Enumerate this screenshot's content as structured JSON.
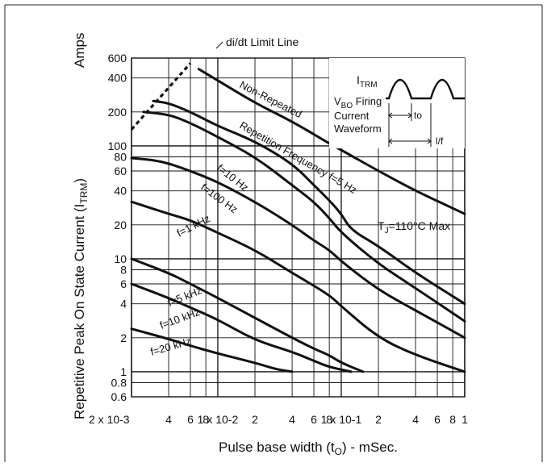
{
  "chart_data": {
    "type": "line",
    "xscale": "log",
    "yscale": "log",
    "xlim": [
      0.002,
      1
    ],
    "ylim": [
      0.6,
      600
    ],
    "grid": true,
    "xlabel": "Pulse base width (tO) - mSec.",
    "ylabel": "Repetitive Peak On State Current (ITRM) Amps",
    "xlabel_parts": {
      "main": "Pulse base width (t",
      "sub": "O",
      "tail": ") - mSec."
    },
    "ylabel_parts": {
      "main": "Repetitive Peak On State Current (I",
      "sub": "TRM",
      "tail": ")"
    },
    "ylabel_unit": "Amps",
    "x_ticks": [
      {
        "v": 0.002,
        "label": "2 x 10-3"
      },
      {
        "v": 0.004,
        "label": "4"
      },
      {
        "v": 0.006,
        "label": "6"
      },
      {
        "v": 0.008,
        "label": "8"
      },
      {
        "v": 0.01,
        "label": "1 x 10-2"
      },
      {
        "v": 0.02,
        "label": "2"
      },
      {
        "v": 0.04,
        "label": "4"
      },
      {
        "v": 0.06,
        "label": "6"
      },
      {
        "v": 0.08,
        "label": "8"
      },
      {
        "v": 0.1,
        "label": "1 x 10-1"
      },
      {
        "v": 0.2,
        "label": "2"
      },
      {
        "v": 0.4,
        "label": "4"
      },
      {
        "v": 0.6,
        "label": "6"
      },
      {
        "v": 0.8,
        "label": "8"
      },
      {
        "v": 1,
        "label": "1"
      }
    ],
    "y_ticks": [
      {
        "v": 600,
        "label": "600"
      },
      {
        "v": 400,
        "label": "400"
      },
      {
        "v": 200,
        "label": "200"
      },
      {
        "v": 100,
        "label": "100"
      },
      {
        "v": 80,
        "label": "80"
      },
      {
        "v": 60,
        "label": "60"
      },
      {
        "v": 40,
        "label": "40"
      },
      {
        "v": 20,
        "label": "20"
      },
      {
        "v": 10,
        "label": "10"
      },
      {
        "v": 8,
        "label": "8"
      },
      {
        "v": 6,
        "label": "6"
      },
      {
        "v": 4,
        "label": "4"
      },
      {
        "v": 2,
        "label": "2"
      },
      {
        "v": 1,
        "label": "1"
      },
      {
        "v": 0.8,
        "label": "0.8"
      },
      {
        "v": 0.6,
        "label": "0.6"
      }
    ],
    "series": [
      {
        "name": "Non-Repeated",
        "points": [
          [
            0.007,
            480
          ],
          [
            0.01,
            380
          ],
          [
            0.02,
            240
          ],
          [
            0.04,
            165
          ],
          [
            0.08,
            105
          ],
          [
            0.1,
            92
          ],
          [
            0.2,
            60
          ],
          [
            0.4,
            40
          ],
          [
            1,
            25
          ]
        ]
      },
      {
        "name": "Repetition Frequency f=5 Hz",
        "points": [
          [
            0.003,
            250
          ],
          [
            0.004,
            240
          ],
          [
            0.006,
            200
          ],
          [
            0.01,
            150
          ],
          [
            0.02,
            110
          ],
          [
            0.04,
            70
          ],
          [
            0.06,
            45
          ],
          [
            0.08,
            33
          ],
          [
            0.1,
            25
          ],
          [
            0.12,
            18
          ],
          [
            0.2,
            13
          ],
          [
            0.4,
            7.5
          ],
          [
            1,
            4
          ]
        ]
      },
      {
        "name": "f=10 Hz",
        "points": [
          [
            0.0025,
            200
          ],
          [
            0.004,
            190
          ],
          [
            0.006,
            160
          ],
          [
            0.01,
            120
          ],
          [
            0.02,
            80
          ],
          [
            0.04,
            45
          ],
          [
            0.06,
            32
          ],
          [
            0.08,
            23
          ],
          [
            0.1,
            17
          ],
          [
            0.2,
            9
          ],
          [
            0.4,
            5.5
          ],
          [
            1,
            2.8
          ]
        ]
      },
      {
        "name": "f=100 Hz",
        "points": [
          [
            0.002,
            78
          ],
          [
            0.003,
            75
          ],
          [
            0.004,
            70
          ],
          [
            0.006,
            60
          ],
          [
            0.01,
            48
          ],
          [
            0.02,
            32
          ],
          [
            0.04,
            20
          ],
          [
            0.06,
            14.5
          ],
          [
            0.08,
            12
          ],
          [
            0.1,
            9.5
          ],
          [
            0.2,
            5.3
          ],
          [
            0.4,
            3.5
          ],
          [
            1,
            2
          ]
        ]
      },
      {
        "name": "f=1 kHz",
        "points": [
          [
            0.002,
            32
          ],
          [
            0.004,
            25
          ],
          [
            0.006,
            22
          ],
          [
            0.01,
            17
          ],
          [
            0.02,
            12
          ],
          [
            0.04,
            7.5
          ],
          [
            0.08,
            4.8
          ],
          [
            0.1,
            3.8
          ],
          [
            0.2,
            2
          ],
          [
            0.4,
            1.4
          ],
          [
            1,
            1
          ]
        ]
      },
      {
        "name": "f=5 kHz",
        "points": [
          [
            0.002,
            10
          ],
          [
            0.004,
            7.5
          ],
          [
            0.006,
            6
          ],
          [
            0.01,
            4.5
          ],
          [
            0.02,
            3
          ],
          [
            0.04,
            2
          ],
          [
            0.06,
            1.6
          ],
          [
            0.08,
            1.4
          ],
          [
            0.1,
            1.2
          ],
          [
            0.15,
            1
          ]
        ]
      },
      {
        "name": "f=10 kHz",
        "points": [
          [
            0.002,
            6
          ],
          [
            0.004,
            4.5
          ],
          [
            0.006,
            3.7
          ],
          [
            0.01,
            2.9
          ],
          [
            0.02,
            1.9
          ],
          [
            0.04,
            1.5
          ],
          [
            0.06,
            1.25
          ],
          [
            0.08,
            1.1
          ],
          [
            0.12,
            1
          ]
        ]
      },
      {
        "name": "f=20 kHz",
        "points": [
          [
            0.002,
            2.4
          ],
          [
            0.004,
            1.95
          ],
          [
            0.006,
            1.7
          ],
          [
            0.01,
            1.45
          ],
          [
            0.02,
            1.2
          ],
          [
            0.03,
            1.05
          ],
          [
            0.04,
            1
          ]
        ]
      }
    ],
    "limit_line": {
      "label": "di/dt Limit Line",
      "points": [
        [
          0.002,
          140
        ],
        [
          0.006,
          540
        ]
      ]
    },
    "annotations": {
      "non_repeated": "Non-Repeated",
      "rep_freq": "Repetition Frequency f=5 Hz",
      "f10hz": "f=10 Hz",
      "f100hz": "f=100 Hz",
      "f1khz": "f=1 kHz",
      "f5khz": "f=5 kHz",
      "f10khz": "f=10 kHz",
      "f20khz": "f=20 kHz",
      "tj_main": "T",
      "tj_sub": "J",
      "tj_tail": "=110°C Max",
      "inset_itrm_main": "I",
      "inset_itrm_sub": "TRM",
      "inset_vbo_main": "V",
      "inset_vbo_sub": "BO",
      "inset_vbo_tail": " Firing",
      "inset_current": "Current",
      "inset_waveform": "Waveform",
      "inset_to": "to",
      "inset_period": "l/f"
    }
  }
}
